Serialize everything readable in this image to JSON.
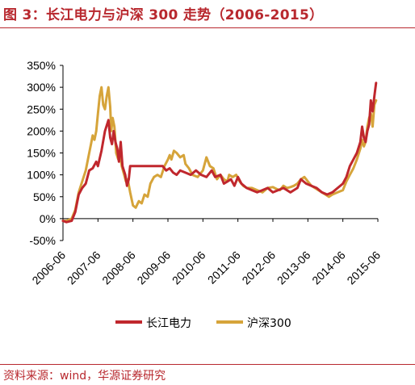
{
  "figure": {
    "title": "图 3：长江电力与沪深 300 走势（2006-2015）",
    "source": "资料来源：wind，华源证券研究"
  },
  "colors": {
    "cjdl": "#c0272d",
    "hs300": "#d6a43a",
    "axis": "#000000",
    "accent": "#b8282e"
  },
  "chart_data": {
    "type": "line",
    "title": "",
    "xlabel": "",
    "ylabel": "",
    "ylim": [
      -50,
      350
    ],
    "yticks": [
      -50,
      0,
      50,
      100,
      150,
      200,
      250,
      300,
      350
    ],
    "ytick_labels": [
      "-50%",
      "0%",
      "50%",
      "100%",
      "150%",
      "200%",
      "250%",
      "300%",
      "350%"
    ],
    "xlim": [
      2006.5,
      2015.5
    ],
    "xticks": [
      2006.5,
      2007.5,
      2008.5,
      2009.5,
      2010.5,
      2011.5,
      2012.5,
      2013.5,
      2014.5,
      2015.5
    ],
    "xtick_labels": [
      "2006-06",
      "2007-06",
      "2008-06",
      "2009-06",
      "2010-06",
      "2011-06",
      "2012-06",
      "2013-06",
      "2014-06",
      "2015-06"
    ],
    "grid": false,
    "legend_position": "bottom",
    "series": [
      {
        "name": "长江电力",
        "color": "#c0272d",
        "x": [
          2006.5,
          2006.6,
          2006.75,
          2006.85,
          2006.95,
          2007.05,
          2007.15,
          2007.25,
          2007.35,
          2007.45,
          2007.5,
          2007.6,
          2007.7,
          2007.8,
          2007.85,
          2007.9,
          2007.95,
          2008.0,
          2008.05,
          2008.1,
          2008.15,
          2008.2,
          2008.28,
          2008.33,
          2008.38,
          2008.42,
          2008.5,
          2008.7,
          2009.0,
          2009.2,
          2009.35,
          2009.45,
          2009.55,
          2009.65,
          2009.75,
          2009.85,
          2010.0,
          2010.15,
          2010.3,
          2010.45,
          2010.6,
          2010.75,
          2010.85,
          2011.0,
          2011.1,
          2011.2,
          2011.3,
          2011.4,
          2011.5,
          2011.6,
          2011.75,
          2011.9,
          2012.05,
          2012.2,
          2012.35,
          2012.5,
          2012.65,
          2012.8,
          2013.0,
          2013.1,
          2013.2,
          2013.3,
          2013.45,
          2013.6,
          2013.75,
          2013.9,
          2014.05,
          2014.2,
          2014.35,
          2014.5,
          2014.6,
          2014.7,
          2014.8,
          2014.9,
          2015.0,
          2015.05,
          2015.1,
          2015.15,
          2015.2,
          2015.25,
          2015.3,
          2015.35,
          2015.4,
          2015.45
        ],
        "values": [
          -5,
          -8,
          -5,
          15,
          55,
          70,
          80,
          110,
          115,
          130,
          120,
          155,
          200,
          225,
          185,
          170,
          200,
          175,
          160,
          130,
          175,
          120,
          100,
          75,
          90,
          120,
          120,
          120,
          120,
          120,
          120,
          110,
          115,
          105,
          100,
          110,
          105,
          100,
          110,
          100,
          95,
          110,
          95,
          100,
          80,
          85,
          90,
          75,
          95,
          80,
          70,
          65,
          60,
          65,
          70,
          60,
          65,
          70,
          60,
          65,
          70,
          90,
          80,
          75,
          70,
          60,
          55,
          60,
          70,
          80,
          95,
          120,
          135,
          150,
          175,
          210,
          185,
          175,
          200,
          215,
          270,
          245,
          280,
          310
        ]
      },
      {
        "name": "沪深300",
        "color": "#d6a43a",
        "x": [
          2006.5,
          2006.6,
          2006.75,
          2006.85,
          2006.95,
          2007.05,
          2007.15,
          2007.25,
          2007.3,
          2007.35,
          2007.4,
          2007.45,
          2007.5,
          2007.55,
          2007.6,
          2007.65,
          2007.7,
          2007.75,
          2007.8,
          2007.85,
          2007.88,
          2007.92,
          2007.97,
          2008.02,
          2008.08,
          2008.12,
          2008.18,
          2008.25,
          2008.3,
          2008.35,
          2008.42,
          2008.5,
          2008.58,
          2008.67,
          2008.75,
          2008.83,
          2008.92,
          2009.0,
          2009.1,
          2009.2,
          2009.3,
          2009.4,
          2009.5,
          2009.55,
          2009.6,
          2009.67,
          2009.75,
          2009.85,
          2009.95,
          2010.0,
          2010.1,
          2010.2,
          2010.35,
          2010.5,
          2010.6,
          2010.7,
          2010.8,
          2010.9,
          2011.0,
          2011.1,
          2011.2,
          2011.25,
          2011.35,
          2011.45,
          2011.55,
          2011.65,
          2011.75,
          2011.9,
          2012.05,
          2012.2,
          2012.35,
          2012.5,
          2012.6,
          2012.7,
          2012.8,
          2012.9,
          2013.0,
          2013.1,
          2013.2,
          2013.3,
          2013.4,
          2013.5,
          2013.6,
          2013.7,
          2013.8,
          2013.9,
          2014.0,
          2014.1,
          2014.2,
          2014.35,
          2014.5,
          2014.6,
          2014.7,
          2014.8,
          2014.9,
          2015.0,
          2015.05,
          2015.1,
          2015.15,
          2015.2,
          2015.25,
          2015.3,
          2015.35,
          2015.4,
          2015.45
        ],
        "values": [
          -5,
          -5,
          0,
          20,
          60,
          85,
          110,
          150,
          170,
          190,
          180,
          200,
          240,
          280,
          300,
          260,
          250,
          280,
          300,
          255,
          200,
          230,
          210,
          150,
          135,
          150,
          120,
          100,
          85,
          90,
          60,
          30,
          25,
          40,
          35,
          55,
          50,
          80,
          95,
          100,
          95,
          120,
          135,
          145,
          135,
          155,
          150,
          140,
          145,
          125,
          115,
          100,
          95,
          110,
          140,
          120,
          115,
          90,
          100,
          90,
          85,
          100,
          95,
          100,
          85,
          75,
          70,
          70,
          65,
          60,
          70,
          72,
          68,
          65,
          75,
          70,
          72,
          75,
          80,
          90,
          95,
          85,
          75,
          70,
          65,
          60,
          55,
          50,
          55,
          60,
          65,
          85,
          100,
          115,
          135,
          160,
          180,
          165,
          175,
          210,
          230,
          240,
          210,
          260,
          270
        ]
      }
    ]
  }
}
